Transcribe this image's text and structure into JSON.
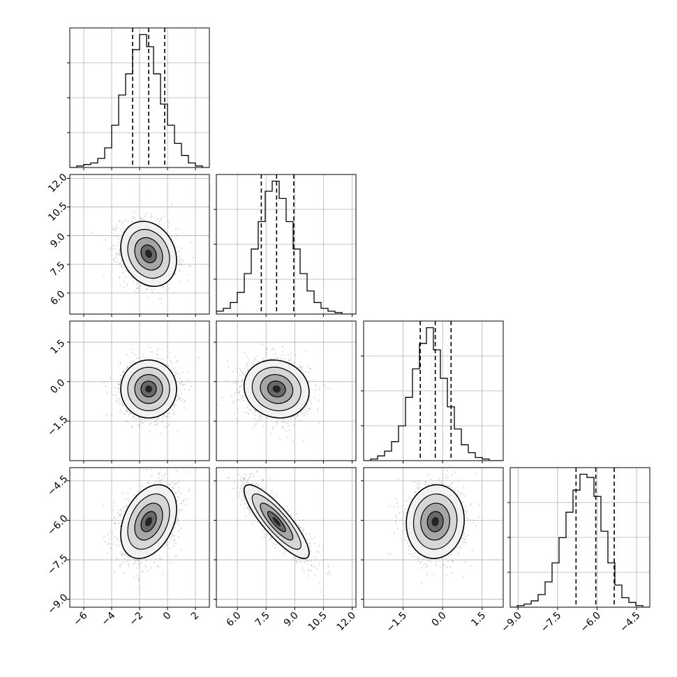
{
  "chart_data": {
    "type": "corner",
    "variables": 4,
    "grid": true,
    "background_color": "#ffffff",
    "line_color": "#000000",
    "grid_color": "#b0b0b0",
    "quantile_line_style": "dashed",
    "x_ticks": [
      {
        "values": [
          -6,
          -4,
          -2,
          0,
          2
        ],
        "labels": [
          "−6",
          "−4",
          "−2",
          "0",
          "2"
        ]
      },
      {
        "values": [
          6.0,
          7.5,
          9.0,
          10.5,
          12.0
        ],
        "labels": [
          "6.0",
          "7.5",
          "9.0",
          "10.5",
          "12.0"
        ]
      },
      {
        "values": [
          -1.5,
          0.0,
          1.5
        ],
        "labels": [
          "−1.5",
          "0.0",
          "1.5"
        ]
      },
      {
        "values": [
          -9.0,
          -7.5,
          -6.0,
          -4.5
        ],
        "labels": [
          "−9.0",
          "−7.5",
          "−6.0",
          "−4.5"
        ]
      }
    ],
    "y_ticks": [
      null,
      {
        "values": [
          6.0,
          7.5,
          9.0,
          10.5,
          12.0
        ],
        "labels": [
          "6.0",
          "7.5",
          "9.0",
          "10.5",
          "12.0"
        ]
      },
      {
        "values": [
          -1.5,
          0.0,
          1.5
        ],
        "labels": [
          "−1.5",
          "0.0",
          "1.5"
        ]
      },
      {
        "values": [
          -9.0,
          -7.5,
          -6.0,
          -4.5
        ],
        "labels": [
          "−9.0",
          "−7.5",
          "−6.0",
          "−4.5"
        ]
      }
    ],
    "ranges": [
      [
        -7.0,
        3.0
      ],
      [
        4.9,
        12.2
      ],
      [
        -3.0,
        2.3
      ],
      [
        -9.3,
        -4.0
      ]
    ],
    "quantiles": [
      [
        -2.5,
        -1.35,
        -0.2
      ],
      [
        7.25,
        8.05,
        8.95
      ],
      [
        -0.85,
        -0.28,
        0.32
      ],
      [
        -6.8,
        -6.05,
        -5.35
      ]
    ],
    "histograms": [
      {
        "bins_from": -7.0,
        "bins_to": 3.0,
        "counts": [
          0,
          1,
          2,
          3,
          6,
          13,
          28,
          48,
          62,
          78,
          88,
          80,
          62,
          42,
          28,
          16,
          8,
          3,
          1,
          0
        ]
      },
      {
        "bins_from": 4.9,
        "bins_to": 12.2,
        "counts": [
          2,
          4,
          8,
          15,
          28,
          45,
          64,
          85,
          92,
          80,
          64,
          45,
          28,
          16,
          8,
          4,
          2,
          1,
          0,
          0
        ]
      },
      {
        "bins_from": -3.0,
        "bins_to": 2.3,
        "counts": [
          0,
          1,
          3,
          6,
          12,
          22,
          40,
          58,
          74,
          84,
          70,
          52,
          34,
          20,
          10,
          5,
          2,
          1,
          0,
          0
        ]
      },
      {
        "bins_from": -9.3,
        "bins_to": -4.0,
        "counts": [
          0,
          1,
          2,
          4,
          8,
          16,
          28,
          44,
          60,
          74,
          84,
          82,
          70,
          48,
          28,
          14,
          6,
          3,
          1,
          0
        ]
      }
    ],
    "joint_panels": [
      {
        "row": 1,
        "col": 0,
        "center": [
          -1.35,
          8.05
        ],
        "sigma": [
          1.0,
          0.85
        ],
        "rho": -0.2
      },
      {
        "row": 2,
        "col": 0,
        "center": [
          -1.35,
          -0.28
        ],
        "sigma": [
          1.0,
          0.55
        ],
        "rho": 0.0
      },
      {
        "row": 2,
        "col": 1,
        "center": [
          8.05,
          -0.28
        ],
        "sigma": [
          0.85,
          0.55
        ],
        "rho": -0.1
      },
      {
        "row": 3,
        "col": 0,
        "center": [
          -1.35,
          -6.05
        ],
        "sigma": [
          1.0,
          0.7
        ],
        "rho": 0.35
      },
      {
        "row": 3,
        "col": 1,
        "center": [
          8.05,
          -6.05
        ],
        "sigma": [
          0.85,
          0.7
        ],
        "rho": -0.85
      },
      {
        "row": 3,
        "col": 2,
        "center": [
          -0.28,
          -6.05
        ],
        "sigma": [
          0.55,
          0.7
        ],
        "rho": 0.05
      }
    ]
  }
}
